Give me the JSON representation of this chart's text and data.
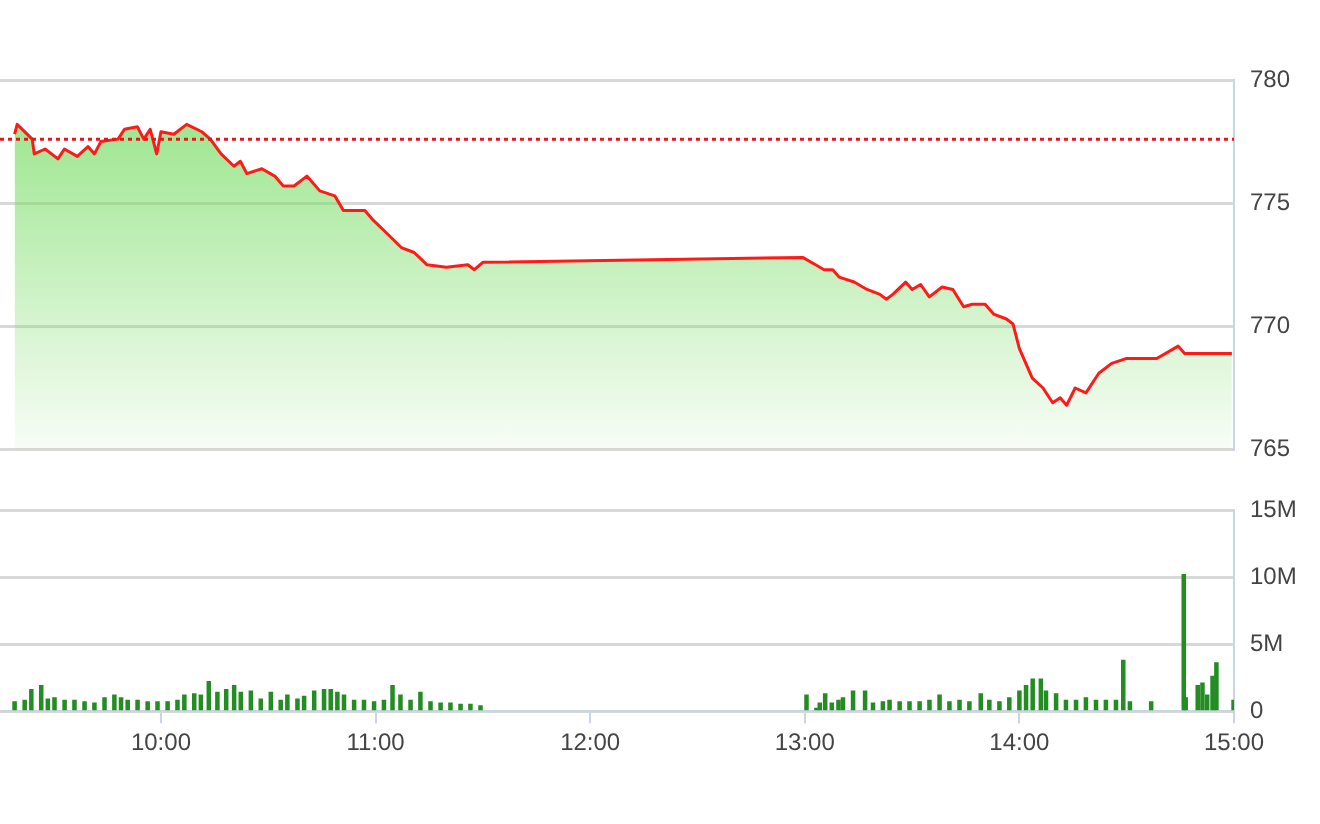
{
  "chart_data": [
    {
      "type": "area",
      "xlim": [
        9.25,
        15
      ],
      "ylim": [
        765,
        780
      ],
      "yticks": [
        765,
        770,
        775,
        780
      ],
      "tick_labels": "y",
      "grid": "y",
      "ref_lines": [
        {
          "axis": "y",
          "value": 777.6,
          "color": "#e8141c",
          "line_style": "dotted"
        }
      ],
      "series": [
        {
          "color": "#ff1a1a",
          "x": [
            9.318,
            9.33,
            9.4,
            9.41,
            9.46,
            9.52,
            9.55,
            9.61,
            9.66,
            9.69,
            9.72,
            9.8,
            9.83,
            9.89,
            9.92,
            9.95,
            9.98,
            10.0,
            10.06,
            10.12,
            10.19,
            10.23,
            10.28,
            10.34,
            10.37,
            10.4,
            10.47,
            10.53,
            10.57,
            10.62,
            10.68,
            10.74,
            10.81,
            10.85,
            10.95,
            10.99,
            11.05,
            11.12,
            11.18,
            11.24,
            11.33,
            11.43,
            11.46,
            11.5,
            12.99,
            13.05,
            13.09,
            13.13,
            13.16,
            13.23,
            13.29,
            13.35,
            13.38,
            13.41,
            13.47,
            13.5,
            13.54,
            13.58,
            13.64,
            13.69,
            13.74,
            13.78,
            13.84,
            13.88,
            13.94,
            13.97,
            14.0,
            14.06,
            14.11,
            14.155,
            14.19,
            14.22,
            14.26,
            14.31,
            14.37,
            14.43,
            14.5,
            14.64,
            14.74,
            14.77,
            14.99
          ],
          "values": [
            777.8,
            778.2,
            777.6,
            777.0,
            777.2,
            776.8,
            777.2,
            776.9,
            777.3,
            777.0,
            777.5,
            777.6,
            778.0,
            778.1,
            777.6,
            778.0,
            777.0,
            777.9,
            777.8,
            778.2,
            777.9,
            777.6,
            777.0,
            776.5,
            776.7,
            776.2,
            776.4,
            776.1,
            775.7,
            775.7,
            776.1,
            775.5,
            775.3,
            774.7,
            774.7,
            774.3,
            773.8,
            773.2,
            773.0,
            772.5,
            772.4,
            772.5,
            772.3,
            772.6,
            772.8,
            772.5,
            772.3,
            772.3,
            772.0,
            771.8,
            771.5,
            771.3,
            771.1,
            771.3,
            771.8,
            771.5,
            771.7,
            771.2,
            771.6,
            771.5,
            770.8,
            770.9,
            770.9,
            770.5,
            770.3,
            770.1,
            769.1,
            767.9,
            767.5,
            766.9,
            767.1,
            766.8,
            767.5,
            767.3,
            768.1,
            768.5,
            768.7,
            768.7,
            769.2,
            768.9,
            768.9
          ]
        }
      ]
    },
    {
      "type": "bar",
      "xlim": [
        9.25,
        15
      ],
      "xticks": [
        {
          "value": 10,
          "label": "10:00"
        },
        {
          "value": 11,
          "label": "11:00"
        },
        {
          "value": 12,
          "label": "12:00"
        },
        {
          "value": 13,
          "label": "13:00"
        },
        {
          "value": 14,
          "label": "14:00"
        },
        {
          "value": 15,
          "label": "15:00"
        }
      ],
      "ylim": [
        0,
        15000000
      ],
      "yticks": [
        {
          "value": 0,
          "label": "0"
        },
        {
          "value": 5000000,
          "label": "5M"
        },
        {
          "value": 10000000,
          "label": "10M"
        },
        {
          "value": 15000000,
          "label": "15M"
        }
      ],
      "grid": "y",
      "series": [
        {
          "color": "#238c23",
          "x": [
            9.318,
            9.365,
            9.396,
            9.442,
            9.473,
            9.504,
            9.551,
            9.597,
            9.644,
            9.69,
            9.737,
            9.783,
            9.814,
            9.845,
            9.891,
            9.938,
            9.984,
            10.031,
            10.077,
            10.109,
            10.155,
            10.186,
            10.223,
            10.263,
            10.304,
            10.341,
            10.372,
            10.419,
            10.465,
            10.512,
            10.558,
            10.589,
            10.636,
            10.667,
            10.714,
            10.76,
            10.791,
            10.822,
            10.853,
            10.9,
            10.946,
            10.993,
            11.039,
            11.079,
            11.116,
            11.163,
            11.209,
            11.256,
            11.303,
            11.349,
            11.396,
            11.442,
            11.489,
            13.008,
            13.054,
            13.07,
            13.095,
            13.126,
            13.157,
            13.178,
            13.225,
            13.281,
            13.318,
            13.364,
            13.395,
            13.442,
            13.488,
            13.535,
            13.581,
            13.628,
            13.674,
            13.721,
            13.767,
            13.82,
            13.86,
            13.907,
            13.953,
            14.0,
            14.031,
            14.062,
            14.1,
            14.124,
            14.171,
            14.217,
            14.264,
            14.31,
            14.357,
            14.403,
            14.45,
            14.484,
            14.515,
            14.614,
            14.766,
            14.775,
            14.831,
            14.853,
            14.875,
            14.9,
            14.918,
            14.998
          ],
          "values": [
            700000,
            800000,
            1600000,
            1900000,
            900000,
            1000000,
            800000,
            800000,
            700000,
            600000,
            1000000,
            1200000,
            1000000,
            800000,
            800000,
            700000,
            700000,
            700000,
            800000,
            1200000,
            1300000,
            1200000,
            2200000,
            1400000,
            1600000,
            1900000,
            1400000,
            1500000,
            900000,
            1400000,
            800000,
            1200000,
            900000,
            1100000,
            1500000,
            1600000,
            1600000,
            1400000,
            1200000,
            800000,
            800000,
            700000,
            800000,
            1900000,
            1200000,
            800000,
            1400000,
            700000,
            600000,
            600000,
            500000,
            500000,
            400000,
            1200000,
            200000,
            600000,
            1300000,
            600000,
            800000,
            1000000,
            1500000,
            1500000,
            600000,
            700000,
            800000,
            700000,
            700000,
            700000,
            800000,
            1200000,
            700000,
            800000,
            700000,
            1300000,
            800000,
            700000,
            1000000,
            1500000,
            1900000,
            2400000,
            2400000,
            1500000,
            1300000,
            800000,
            800000,
            1000000,
            800000,
            800000,
            800000,
            3800000,
            700000,
            700000,
            10200000,
            1000000,
            1900000,
            2100000,
            1200000,
            2600000,
            3600000,
            800000
          ]
        }
      ]
    }
  ]
}
